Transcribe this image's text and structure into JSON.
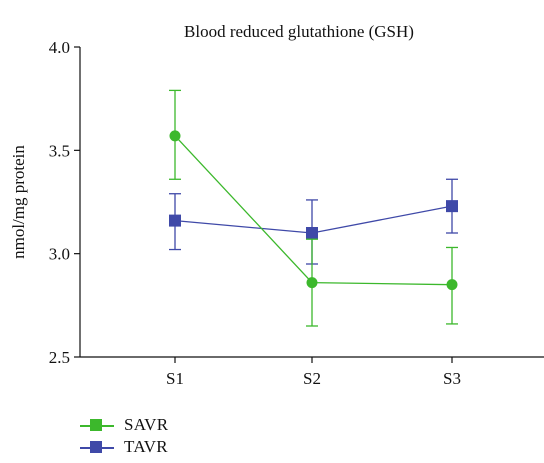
{
  "chart_data": {
    "type": "line",
    "title": "Blood reduced glutathione (GSH)",
    "ylabel": "nmol/mg protein",
    "xlabel": "",
    "categories": [
      "S1",
      "S2",
      "S3"
    ],
    "ylim": [
      2.5,
      4.0
    ],
    "yticks": [
      2.5,
      3.0,
      3.5,
      4.0
    ],
    "ytick_labels": [
      "2.5",
      "3.0",
      "3.5",
      "4.0"
    ],
    "grid": false,
    "legend_position": "bottom-left",
    "series": [
      {
        "name": "SAVR",
        "color": "#3cb82c",
        "marker": "circle",
        "values": [
          3.57,
          2.86,
          2.85
        ],
        "err_low": [
          3.36,
          2.65,
          2.66
        ],
        "err_high": [
          3.79,
          3.07,
          3.03
        ]
      },
      {
        "name": "TAVR",
        "color": "#3f49a8",
        "marker": "square",
        "values": [
          3.16,
          3.1,
          3.23
        ],
        "err_low": [
          3.02,
          2.95,
          3.1
        ],
        "err_high": [
          3.29,
          3.26,
          3.36
        ]
      }
    ]
  }
}
